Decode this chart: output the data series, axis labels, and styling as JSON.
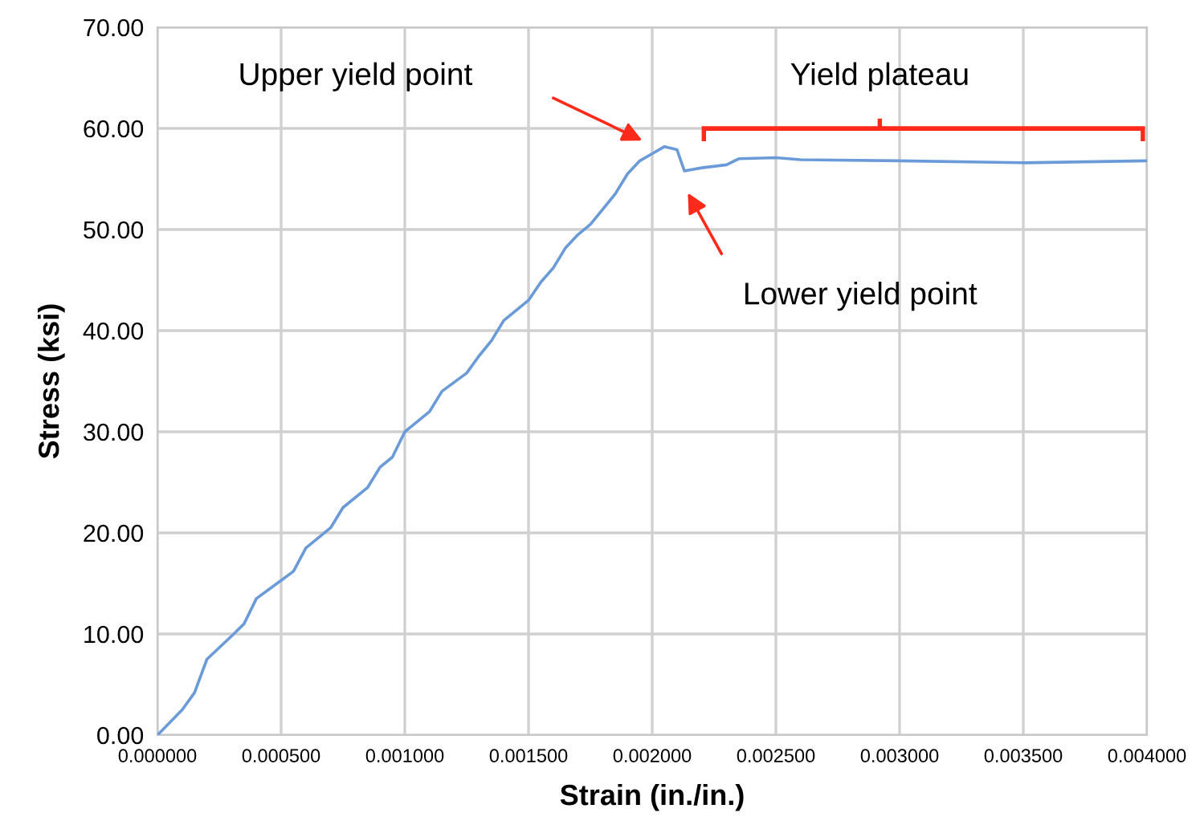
{
  "chart_data": {
    "type": "line",
    "xlabel": "Strain (in./in.)",
    "ylabel": "Stress (ksi)",
    "x": [
      0,
      0.0001,
      0.00015,
      0.0002,
      0.0003,
      0.00035,
      0.0004,
      0.0005,
      0.00055,
      0.0006,
      0.0007,
      0.00075,
      0.00085,
      0.0009,
      0.00095,
      0.001,
      0.0011,
      0.00115,
      0.00125,
      0.0013,
      0.00135,
      0.0014,
      0.0015,
      0.00155,
      0.0016,
      0.00165,
      0.0017,
      0.00175,
      0.0018,
      0.00185,
      0.0019,
      0.00195,
      0.002,
      0.00205,
      0.0021,
      0.00213,
      0.0022,
      0.0023,
      0.00235,
      0.0025,
      0.0026,
      0.003,
      0.0035,
      0.004
    ],
    "series": [
      {
        "color": "#6a9bd8",
        "values": [
          0,
          2.5,
          4.2,
          7.5,
          9.8,
          11,
          13.5,
          15.3,
          16.2,
          18.5,
          20.5,
          22.5,
          24.5,
          26.5,
          27.5,
          30,
          32,
          34,
          35.8,
          37.5,
          39,
          41,
          43,
          44.8,
          46.2,
          48.2,
          49.5,
          50.5,
          52,
          53.5,
          55.5,
          56.8,
          57.5,
          58.2,
          57.9,
          55.8,
          56.1,
          56.4,
          57.0,
          57.1,
          56.9,
          56.8,
          56.6,
          56.8
        ]
      }
    ],
    "xlim": [
      0,
      0.004
    ],
    "ylim": [
      0,
      70
    ],
    "xticks": [
      {
        "value": 0,
        "label": "0.000000"
      },
      {
        "value": 0.0005,
        "label": "0.000500"
      },
      {
        "value": 0.001,
        "label": "0.001000"
      },
      {
        "value": 0.0015,
        "label": "0.001500"
      },
      {
        "value": 0.002,
        "label": "0.002000"
      },
      {
        "value": 0.0025,
        "label": "0.002500"
      },
      {
        "value": 0.003,
        "label": "0.003000"
      },
      {
        "value": 0.0035,
        "label": "0.003500"
      },
      {
        "value": 0.004,
        "label": "0.004000"
      }
    ],
    "yticks": [
      {
        "value": 0,
        "label": "0.00"
      },
      {
        "value": 10,
        "label": "10.00"
      },
      {
        "value": 20,
        "label": "20.00"
      },
      {
        "value": 30,
        "label": "30.00"
      },
      {
        "value": 40,
        "label": "40.00"
      },
      {
        "value": 50,
        "label": "50.00"
      },
      {
        "value": 60,
        "label": "60.00"
      },
      {
        "value": 70,
        "label": "70.00"
      }
    ],
    "grid": true,
    "marker": "none",
    "line_style": "solid",
    "annotations": [
      "Upper yield point",
      "Lower yield point",
      "Yield plateau"
    ]
  }
}
